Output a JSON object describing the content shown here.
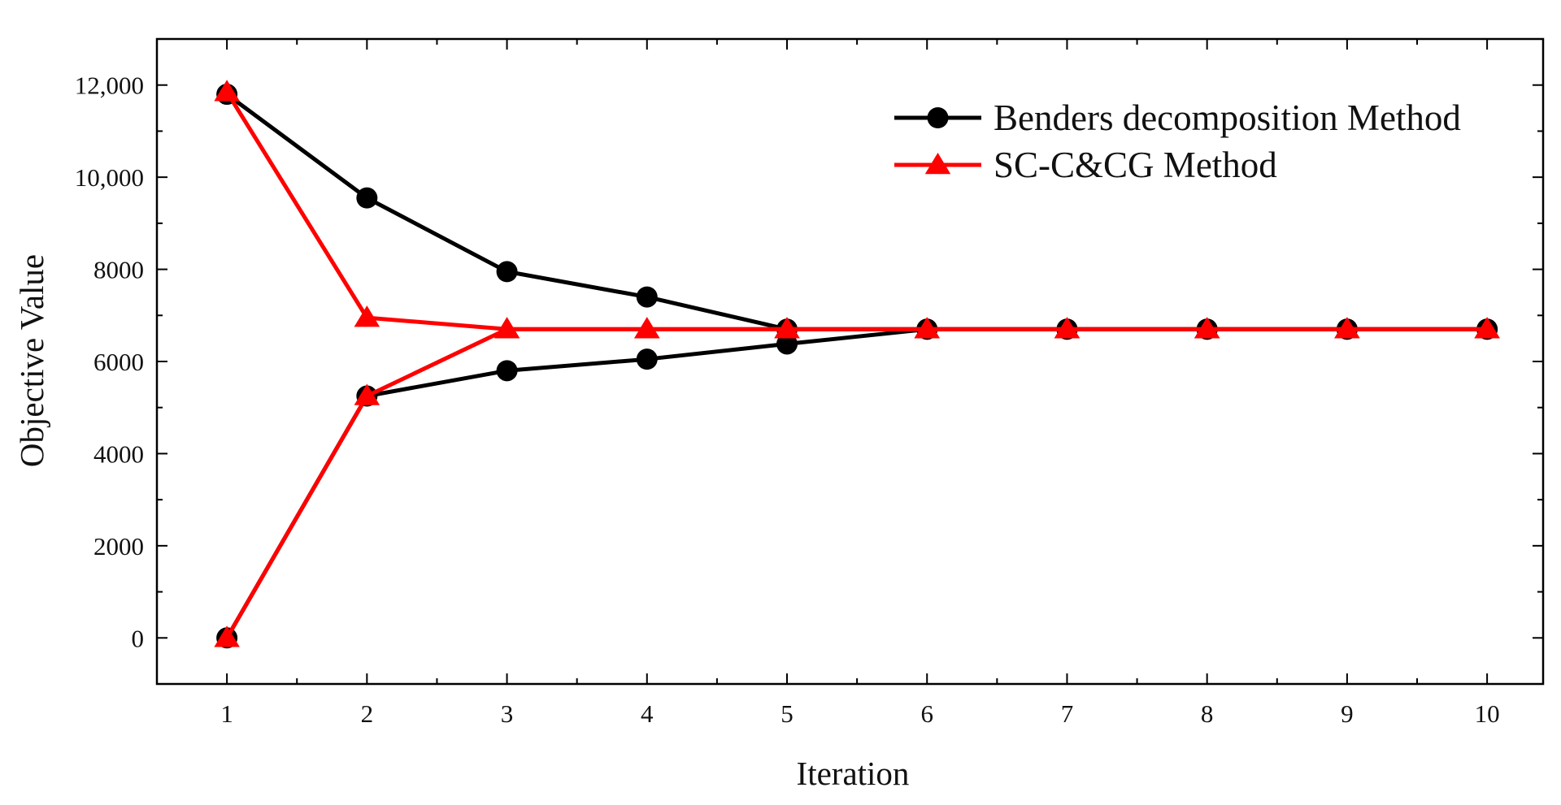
{
  "chart_data": {
    "type": "line",
    "title": "",
    "xlabel": "Iteration",
    "ylabel": "Objective Value",
    "xlim": [
      0.5,
      10.4
    ],
    "ylim": [
      -1000,
      13000
    ],
    "x_ticks": [
      1,
      2,
      3,
      4,
      5,
      6,
      7,
      8,
      9,
      10
    ],
    "x_tick_labels": [
      "1",
      "2",
      "3",
      "4",
      "5",
      "6",
      "7",
      "8",
      "9",
      "10"
    ],
    "y_ticks": [
      0,
      2000,
      4000,
      6000,
      8000,
      10000,
      12000
    ],
    "y_tick_labels": [
      "0",
      "2000",
      "4000",
      "6000",
      "8000",
      "10,000",
      "12,000"
    ],
    "grid": false,
    "legend_position": "top-right",
    "series": [
      {
        "name": "Benders decomposition Method",
        "color": "#000000",
        "marker": "circle",
        "bounds": [
          {
            "bound": "upper",
            "x": [
              1,
              2,
              3,
              4,
              5,
              6,
              7,
              8,
              9,
              10
            ],
            "values": [
              11800,
              9550,
              7950,
              7400,
              6700,
              6700,
              6700,
              6700,
              6700,
              6700
            ]
          },
          {
            "bound": "lower",
            "x": [
              1,
              2,
              3,
              4,
              5,
              6,
              7,
              8,
              9,
              10
            ],
            "values": [
              0,
              5250,
              5800,
              6050,
              6380,
              6700,
              6700,
              6700,
              6700,
              6700
            ]
          }
        ]
      },
      {
        "name": "SC-C&CG Method",
        "color": "#ff0000",
        "marker": "triangle",
        "bounds": [
          {
            "bound": "upper",
            "x": [
              1,
              2,
              3,
              4,
              5,
              6,
              7,
              8,
              9,
              10
            ],
            "values": [
              11850,
              6950,
              6700,
              6700,
              6700,
              6700,
              6700,
              6700,
              6700,
              6700
            ]
          },
          {
            "bound": "lower",
            "x": [
              1,
              2,
              3,
              4,
              5,
              6,
              7,
              8,
              9,
              10
            ],
            "values": [
              0,
              5250,
              6700,
              6700,
              6700,
              6700,
              6700,
              6700,
              6700,
              6700
            ]
          }
        ]
      }
    ]
  }
}
